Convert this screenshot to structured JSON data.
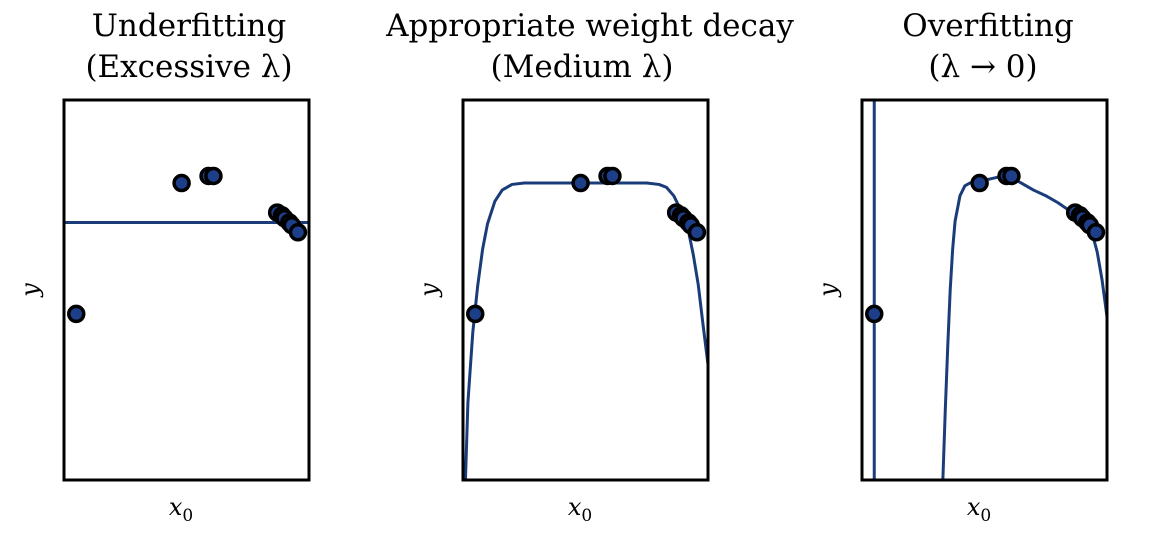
{
  "colors": {
    "curve": "#1a3d7a",
    "point_fill": "#1d3f8a",
    "point_edge": "#000000",
    "frame": "#000000"
  },
  "chart_data": [
    {
      "type": "line",
      "title": [
        "Underfitting",
        "(Excessive λ)"
      ],
      "xlabel": "x",
      "xlabel_sub": "0",
      "ylabel": "y",
      "xlim": [
        0,
        1
      ],
      "ylim": [
        -1.4,
        1.3
      ],
      "grid": false,
      "ticks": false,
      "points": [
        {
          "x": 0.05,
          "y": -0.22
        },
        {
          "x": 0.48,
          "y": 0.71
        },
        {
          "x": 0.59,
          "y": 0.76
        },
        {
          "x": 0.61,
          "y": 0.76
        },
        {
          "x": 0.87,
          "y": 0.5
        },
        {
          "x": 0.89,
          "y": 0.48
        },
        {
          "x": 0.9,
          "y": 0.46
        },
        {
          "x": 0.92,
          "y": 0.43
        },
        {
          "x": 0.93,
          "y": 0.41
        },
        {
          "x": 0.955,
          "y": 0.36
        }
      ],
      "series": [
        {
          "x": [
            0.0,
            1.0
          ],
          "y": [
            0.43,
            0.43
          ]
        }
      ]
    },
    {
      "type": "line",
      "title": [
        "Appropriate weight decay",
        "(Medium λ)"
      ],
      "xlabel": "x",
      "xlabel_sub": "0",
      "ylabel": "y",
      "xlim": [
        0,
        1
      ],
      "ylim": [
        -1.4,
        1.3
      ],
      "grid": false,
      "ticks": false,
      "points": [
        {
          "x": 0.05,
          "y": -0.22
        },
        {
          "x": 0.48,
          "y": 0.71
        },
        {
          "x": 0.59,
          "y": 0.76
        },
        {
          "x": 0.61,
          "y": 0.76
        },
        {
          "x": 0.87,
          "y": 0.5
        },
        {
          "x": 0.89,
          "y": 0.48
        },
        {
          "x": 0.9,
          "y": 0.46
        },
        {
          "x": 0.92,
          "y": 0.43
        },
        {
          "x": 0.93,
          "y": 0.41
        },
        {
          "x": 0.955,
          "y": 0.36
        }
      ],
      "series": [
        {
          "x": [
            0.01,
            0.02,
            0.04,
            0.06,
            0.08,
            0.1,
            0.13,
            0.16,
            0.2,
            0.25,
            0.3,
            0.4,
            0.5,
            0.6,
            0.7,
            0.75,
            0.8,
            0.83,
            0.86,
            0.88,
            0.9,
            0.92,
            0.94,
            0.96,
            0.98,
            1.0
          ],
          "y": [
            -1.4,
            -0.85,
            -0.35,
            -0.02,
            0.24,
            0.42,
            0.58,
            0.66,
            0.7,
            0.71,
            0.71,
            0.71,
            0.71,
            0.71,
            0.71,
            0.71,
            0.7,
            0.68,
            0.62,
            0.55,
            0.46,
            0.37,
            0.2,
            -0.01,
            -0.3,
            -0.58
          ]
        }
      ]
    },
    {
      "type": "line",
      "title": [
        "Overfitting",
        "(λ → 0)"
      ],
      "xlabel": "x",
      "xlabel_sub": "0",
      "ylabel": "y",
      "xlim": [
        0,
        1
      ],
      "ylim": [
        -1.4,
        1.3
      ],
      "grid": false,
      "ticks": false,
      "points": [
        {
          "x": 0.05,
          "y": -0.22
        },
        {
          "x": 0.48,
          "y": 0.71
        },
        {
          "x": 0.59,
          "y": 0.76
        },
        {
          "x": 0.61,
          "y": 0.76
        },
        {
          "x": 0.87,
          "y": 0.5
        },
        {
          "x": 0.89,
          "y": 0.48
        },
        {
          "x": 0.9,
          "y": 0.46
        },
        {
          "x": 0.92,
          "y": 0.43
        },
        {
          "x": 0.93,
          "y": 0.41
        },
        {
          "x": 0.955,
          "y": 0.36
        }
      ],
      "series": [
        {
          "x": [
            0.05,
            0.05
          ],
          "y": [
            -1.4,
            1.3
          ]
        },
        {
          "x": [
            0.33,
            0.34,
            0.35,
            0.36,
            0.37,
            0.38,
            0.4,
            0.42,
            0.44,
            0.46,
            0.48,
            0.5,
            0.55,
            0.59,
            0.62,
            0.66,
            0.7,
            0.75,
            0.8,
            0.85,
            0.88,
            0.9,
            0.92,
            0.94,
            0.96,
            0.98,
            1.0
          ],
          "y": [
            -1.4,
            -0.9,
            -0.45,
            -0.05,
            0.24,
            0.44,
            0.62,
            0.69,
            0.71,
            0.72,
            0.72,
            0.73,
            0.75,
            0.77,
            0.74,
            0.7,
            0.66,
            0.62,
            0.57,
            0.51,
            0.46,
            0.43,
            0.4,
            0.35,
            0.22,
            0.02,
            -0.24
          ]
        }
      ]
    }
  ]
}
